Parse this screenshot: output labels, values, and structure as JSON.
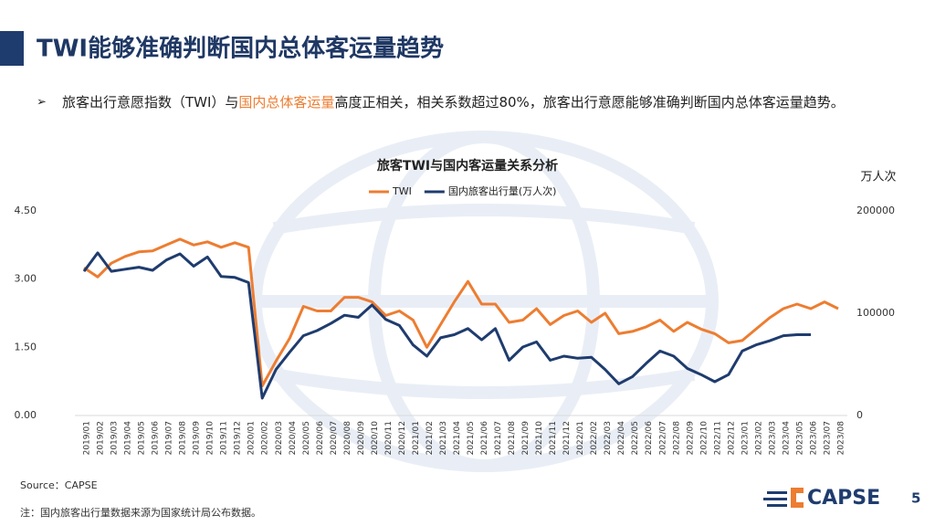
{
  "slide": {
    "title": "TWI能够准确判断国内总体客运量趋势",
    "bullet": [
      "旅客出行意愿指数（TWI）与",
      "国内总体客运量",
      "高度正相关，相关系数超过80%，旅客出行意愿能够准确判断国内总体客运量趋势。"
    ],
    "source": "Source：CAPSE",
    "note": "注：国内旅客出行量数据来源为国家统计局公布数据。",
    "logo": "CAPSE",
    "page": "5"
  },
  "chart_data": {
    "type": "line",
    "title": "旅客TWI与国内客运量关系分析",
    "y2_label": "万人次",
    "x": [
      "2019/01",
      "2019/02",
      "2019/03",
      "2019/04",
      "2019/05",
      "2019/06",
      "2019/07",
      "2019/08",
      "2019/09",
      "2019/10",
      "2019/11",
      "2019/12",
      "2020/01",
      "2020/02",
      "2020/03",
      "2020/04",
      "2020/05",
      "2020/06",
      "2020/07",
      "2020/08",
      "2020/09",
      "2020/10",
      "2020/11",
      "2020/12",
      "2021/01",
      "2021/02",
      "2021/03",
      "2021/04",
      "2021/05",
      "2021/06",
      "2021/07",
      "2021/08",
      "2021/09",
      "2021/10",
      "2021/11",
      "2021/12",
      "2022/01",
      "2022/02",
      "2022/03",
      "2022/04",
      "2022/05",
      "2022/06",
      "2022/07",
      "2022/08",
      "2022/09",
      "2022/10",
      "2022/11",
      "2022/12",
      "2023/01",
      "2023/02",
      "2023/03",
      "2023/04",
      "2023/05",
      "2023/06",
      "2023/07",
      "2023/08"
    ],
    "series": [
      {
        "name": "TWI",
        "color": "#ed7d31",
        "axis": "y",
        "values": [
          3.25,
          3.05,
          3.35,
          3.5,
          3.6,
          3.62,
          3.75,
          3.88,
          3.75,
          3.82,
          3.7,
          3.8,
          3.7,
          0.65,
          1.2,
          1.7,
          2.4,
          2.3,
          2.3,
          2.6,
          2.6,
          2.5,
          2.2,
          2.3,
          2.1,
          1.5,
          2.0,
          2.5,
          2.95,
          2.45,
          2.45,
          2.05,
          2.1,
          2.35,
          2.0,
          2.2,
          2.3,
          2.05,
          2.25,
          1.8,
          1.85,
          1.95,
          2.1,
          1.85,
          2.05,
          1.9,
          1.8,
          1.6,
          1.65,
          1.9,
          2.15,
          2.35,
          2.45,
          2.35,
          2.5,
          2.35
        ]
      },
      {
        "name": "国内旅客出行量(万人次)",
        "color": "#1f3c6e",
        "axis": "y2",
        "values": [
          141000,
          159000,
          141000,
          143000,
          145000,
          142000,
          152000,
          158000,
          146000,
          155000,
          136000,
          135000,
          130000,
          17000,
          45000,
          62000,
          78000,
          83000,
          90000,
          98000,
          96000,
          108000,
          94000,
          88000,
          69000,
          58000,
          76000,
          79000,
          85000,
          74000,
          85000,
          54000,
          67000,
          72000,
          54000,
          58000,
          56000,
          57000,
          45000,
          31000,
          38000,
          51000,
          63000,
          58000,
          46000,
          40000,
          33000,
          40000,
          63000,
          69000,
          73000,
          78000,
          79000,
          79000,
          null,
          null
        ]
      }
    ],
    "ylim": [
      0,
      4.5
    ],
    "yticks": [
      {
        "value": 0,
        "label": "0.00"
      },
      {
        "value": 1.5,
        "label": "1.50"
      },
      {
        "value": 3,
        "label": "3.00"
      },
      {
        "value": 4.5,
        "label": "4.50"
      }
    ],
    "y2lim": [
      0,
      200000
    ],
    "y2ticks": [
      0,
      100000,
      200000
    ],
    "grid": false,
    "legend": "top"
  }
}
